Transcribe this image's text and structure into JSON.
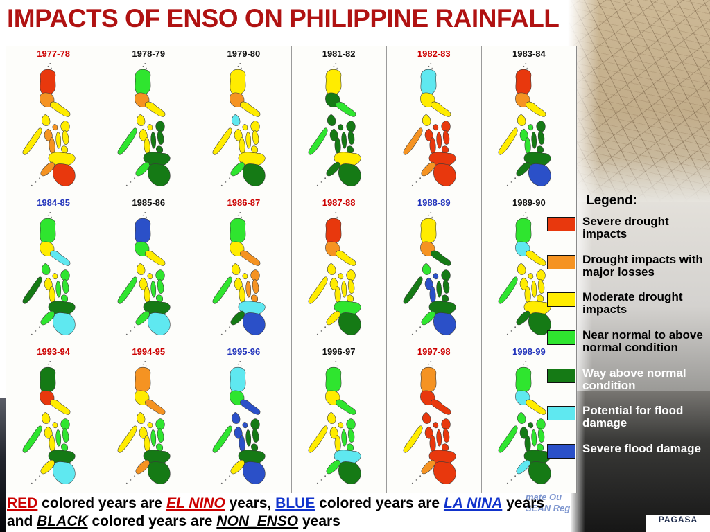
{
  "title": "IMPACTS OF ENSO ON PHILIPPINE RAINFALL",
  "palette": {
    "severe": "#e8380d",
    "drought": "#f59322",
    "moderate": "#ffec00",
    "near": "#2fe52f",
    "way": "#157a15",
    "floodpot": "#5fe8f0",
    "floodsev": "#2b50c8"
  },
  "year_colors": {
    "red": "#cc0000",
    "blue": "#2233bb",
    "black": "#111111"
  },
  "region_order": [
    "ln",
    "lc",
    "ls",
    "md",
    "pw",
    "vw",
    "ve",
    "mn",
    "mw",
    "ms"
  ],
  "maps": [
    {
      "year": "1977-78",
      "year_color": "red",
      "regions": {
        "ln": "severe",
        "lc": "drought",
        "ls": "moderate",
        "md": "moderate",
        "pw": "moderate",
        "vw": "drought",
        "ve": "moderate",
        "mn": "moderate",
        "mw": "drought",
        "ms": "severe"
      }
    },
    {
      "year": "1978-79",
      "year_color": "black",
      "regions": {
        "ln": "near",
        "lc": "drought",
        "ls": "moderate",
        "md": "moderate",
        "pw": "near",
        "vw": "moderate",
        "ve": "way",
        "mn": "way",
        "mw": "near",
        "ms": "way"
      }
    },
    {
      "year": "1979-80",
      "year_color": "black",
      "regions": {
        "ln": "moderate",
        "lc": "drought",
        "ls": "moderate",
        "md": "floodpot",
        "pw": "moderate",
        "vw": "moderate",
        "ve": "moderate",
        "mn": "moderate",
        "mw": "near",
        "ms": "way"
      }
    },
    {
      "year": "1981-82",
      "year_color": "black",
      "regions": {
        "ln": "moderate",
        "lc": "way",
        "ls": "near",
        "md": "way",
        "pw": "near",
        "vw": "way",
        "ve": "way",
        "mn": "moderate",
        "mw": "way",
        "ms": "way"
      }
    },
    {
      "year": "1982-83",
      "year_color": "red",
      "regions": {
        "ln": "floodpot",
        "lc": "moderate",
        "ls": "moderate",
        "md": "moderate",
        "pw": "drought",
        "vw": "severe",
        "ve": "severe",
        "mn": "severe",
        "mw": "drought",
        "ms": "severe"
      }
    },
    {
      "year": "1983-84",
      "year_color": "black",
      "regions": {
        "ln": "severe",
        "lc": "drought",
        "ls": "moderate",
        "md": "moderate",
        "pw": "moderate",
        "vw": "near",
        "ve": "way",
        "mn": "way",
        "mw": "way",
        "ms": "floodsev"
      }
    },
    {
      "year": "1984-85",
      "year_color": "blue",
      "regions": {
        "ln": "near",
        "lc": "moderate",
        "ls": "floodpot",
        "md": "near",
        "pw": "way",
        "vw": "moderate",
        "ve": "near",
        "mn": "way",
        "mw": "near",
        "ms": "floodpot"
      }
    },
    {
      "year": "1985-86",
      "year_color": "black",
      "regions": {
        "ln": "floodsev",
        "lc": "near",
        "ls": "moderate",
        "md": "moderate",
        "pw": "near",
        "vw": "moderate",
        "ve": "near",
        "mn": "way",
        "mw": "near",
        "ms": "floodpot"
      }
    },
    {
      "year": "1986-87",
      "year_color": "red",
      "regions": {
        "ln": "near",
        "lc": "moderate",
        "ls": "drought",
        "md": "moderate",
        "pw": "near",
        "vw": "moderate",
        "ve": "drought",
        "mn": "floodpot",
        "mw": "way",
        "ms": "floodsev"
      }
    },
    {
      "year": "1987-88",
      "year_color": "red",
      "regions": {
        "ln": "severe",
        "lc": "drought",
        "ls": "moderate",
        "md": "moderate",
        "pw": "moderate",
        "vw": "moderate",
        "ve": "moderate",
        "mn": "near",
        "mw": "moderate",
        "ms": "way"
      }
    },
    {
      "year": "1988-89",
      "year_color": "blue",
      "regions": {
        "ln": "moderate",
        "lc": "drought",
        "ls": "way",
        "md": "near",
        "pw": "way",
        "vw": "floodsev",
        "ve": "way",
        "mn": "way",
        "mw": "near",
        "ms": "floodsev"
      }
    },
    {
      "year": "1989-90",
      "year_color": "black",
      "regions": {
        "ln": "near",
        "lc": "floodpot",
        "ls": "moderate",
        "md": "moderate",
        "pw": "near",
        "vw": "moderate",
        "ve": "moderate",
        "mn": "moderate",
        "mw": "way",
        "ms": "way"
      }
    },
    {
      "year": "1993-94",
      "year_color": "red",
      "regions": {
        "ln": "way",
        "lc": "severe",
        "ls": "moderate",
        "md": "moderate",
        "pw": "near",
        "vw": "moderate",
        "ve": "near",
        "mn": "way",
        "mw": "moderate",
        "ms": "floodpot"
      }
    },
    {
      "year": "1994-95",
      "year_color": "red",
      "regions": {
        "ln": "drought",
        "lc": "moderate",
        "ls": "drought",
        "md": "moderate",
        "pw": "moderate",
        "vw": "moderate",
        "ve": "near",
        "mn": "way",
        "mw": "drought",
        "ms": "way"
      }
    },
    {
      "year": "1995-96",
      "year_color": "blue",
      "regions": {
        "ln": "floodpot",
        "lc": "near",
        "ls": "floodsev",
        "md": "floodsev",
        "pw": "near",
        "vw": "floodsev",
        "ve": "way",
        "mn": "way",
        "mw": "moderate",
        "ms": "floodsev"
      }
    },
    {
      "year": "1996-97",
      "year_color": "black",
      "regions": {
        "ln": "near",
        "lc": "moderate",
        "ls": "near",
        "md": "moderate",
        "pw": "moderate",
        "vw": "moderate",
        "ve": "near",
        "mn": "floodpot",
        "mw": "near",
        "ms": "way"
      }
    },
    {
      "year": "1997-98",
      "year_color": "red",
      "regions": {
        "ln": "drought",
        "lc": "severe",
        "ls": "severe",
        "md": "severe",
        "pw": "moderate",
        "vw": "severe",
        "ve": "severe",
        "mn": "severe",
        "mw": "drought",
        "ms": "severe"
      }
    },
    {
      "year": "1998-99",
      "year_color": "blue",
      "regions": {
        "ln": "near",
        "lc": "floodpot",
        "ls": "moderate",
        "md": "near",
        "pw": "near",
        "vw": "way",
        "ve": "near",
        "mn": "way",
        "mw": "floodpot",
        "ms": "way"
      }
    }
  ],
  "legend": {
    "header": "Legend:",
    "items": [
      {
        "label": "Severe drought impacts",
        "color_key": "severe",
        "text_color": "#000000"
      },
      {
        "label": "Drought impacts with major losses",
        "color_key": "drought",
        "text_color": "#000000"
      },
      {
        "label": "Moderate drought impacts",
        "color_key": "moderate",
        "text_color": "#000000"
      },
      {
        "label": "Near normal to above normal condition",
        "color_key": "near",
        "text_color": "#000000"
      },
      {
        "label": "Way above normal condition",
        "color_key": "way",
        "text_color": "#ffffff"
      },
      {
        "label": "Potential for flood damage",
        "color_key": "floodpot",
        "text_color": "#ffffff"
      },
      {
        "label": "Severe flood damage",
        "color_key": "floodsev",
        "text_color": "#ffffff"
      }
    ]
  },
  "caption": {
    "segments": [
      {
        "text": "RED",
        "color": "#cc0000",
        "underline": true,
        "italic": false
      },
      {
        "text": " colored years are ",
        "color": "#000000",
        "underline": false,
        "italic": false
      },
      {
        "text": "EL NINO",
        "color": "#cc0000",
        "underline": true,
        "italic": true
      },
      {
        "text": " years, ",
        "color": "#000000",
        "underline": false,
        "italic": false
      },
      {
        "text": "BLUE",
        "color": "#1133cc",
        "underline": true,
        "italic": false
      },
      {
        "text": " colored years are ",
        "color": "#000000",
        "underline": false,
        "italic": false
      },
      {
        "text": "LA NINA",
        "color": "#1133cc",
        "underline": true,
        "italic": true
      },
      {
        "text": " years and ",
        "color": "#000000",
        "underline": false,
        "italic": false
      },
      {
        "text": "BLACK",
        "color": "#000000",
        "underline": true,
        "italic": true
      },
      {
        "text": " colored years are ",
        "color": "#000000",
        "underline": false,
        "italic": false
      },
      {
        "text": "NON_ENSO",
        "color": "#000000",
        "underline": true,
        "italic": true
      },
      {
        "text": " years",
        "color": "#000000",
        "underline": false,
        "italic": false
      }
    ]
  },
  "watermark": {
    "line1": "mate Ou",
    "line2": "SEAN Reg"
  },
  "footer": {
    "agency": "PAGASA"
  }
}
